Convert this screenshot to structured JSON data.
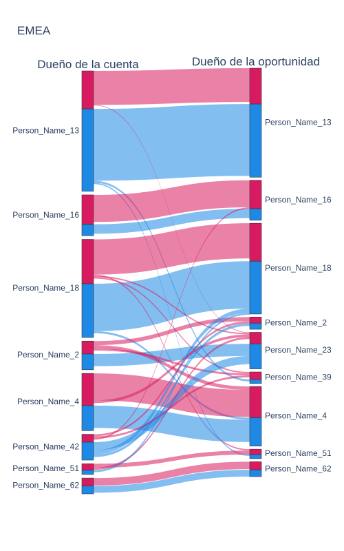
{
  "chart_data": {
    "type": "sankey",
    "title": "EMEA",
    "left_header": "Dueño de la cuenta",
    "right_header": "Dueño de la oportunidad",
    "colors": {
      "pink": "#d81b60",
      "blue": "#1e88e5"
    },
    "left_nodes": [
      {
        "name": "Person_Name_13",
        "pink": 53,
        "blue": 115
      },
      {
        "name": "Person_Name_16",
        "pink": 41,
        "blue": 16
      },
      {
        "name": "Person_Name_18",
        "pink": 62,
        "blue": 75
      },
      {
        "name": "Person_Name_2",
        "pink": 18,
        "blue": 22
      },
      {
        "name": "Person_Name_4",
        "pink": 45,
        "blue": 35
      },
      {
        "name": "Person_Name_42",
        "pink": 11,
        "blue": 25
      },
      {
        "name": "Person_Name_51",
        "pink": 9,
        "blue": 6
      },
      {
        "name": "Person_Name_62",
        "pink": 11,
        "blue": 11
      }
    ],
    "right_nodes": [
      {
        "name": "Person_Name_13",
        "pink": 53,
        "blue": 108
      },
      {
        "name": "Person_Name_16",
        "pink": 42,
        "blue": 17
      },
      {
        "name": "Person_Name_18",
        "pink": 56,
        "blue": 78
      },
      {
        "name": "Person_Name_2",
        "pink": 9,
        "blue": 9
      },
      {
        "name": "Person_Name_23",
        "pink": 17,
        "blue": 37
      },
      {
        "name": "Person_Name_39",
        "pink": 11,
        "blue": 6
      },
      {
        "name": "Person_Name_4",
        "pink": 46,
        "blue": 42
      },
      {
        "name": "Person_Name_51",
        "pink": 8,
        "blue": 6
      },
      {
        "name": "Person_Name_62",
        "pink": 12,
        "blue": 10
      }
    ],
    "flows": [
      {
        "from": "Person_Name_13",
        "to": "Person_Name_13",
        "color": "pink",
        "value": 50
      },
      {
        "from": "Person_Name_13",
        "to": "Person_Name_13",
        "color": "blue",
        "value": 106
      },
      {
        "from": "Person_Name_13",
        "to": "Person_Name_39",
        "color": "blue",
        "value": 3
      },
      {
        "from": "Person_Name_13",
        "to": "Person_Name_51",
        "color": "blue",
        "value": 2
      },
      {
        "from": "Person_Name_13",
        "to": "Person_Name_23",
        "color": "pink",
        "value": 1
      },
      {
        "from": "Person_Name_16",
        "to": "Person_Name_16",
        "color": "pink",
        "value": 40
      },
      {
        "from": "Person_Name_16",
        "to": "Person_Name_16",
        "color": "blue",
        "value": 14
      },
      {
        "from": "Person_Name_18",
        "to": "Person_Name_18",
        "color": "pink",
        "value": 52
      },
      {
        "from": "Person_Name_18",
        "to": "Person_Name_18",
        "color": "blue",
        "value": 70
      },
      {
        "from": "Person_Name_18",
        "to": "Person_Name_4",
        "color": "blue",
        "value": 3
      },
      {
        "from": "Person_Name_18",
        "to": "Person_Name_51",
        "color": "pink",
        "value": 2
      },
      {
        "from": "Person_Name_18",
        "to": "Person_Name_23",
        "color": "pink",
        "value": 2
      },
      {
        "from": "Person_Name_18",
        "to": "Person_Name_39",
        "color": "pink",
        "value": 2
      },
      {
        "from": "Person_Name_2",
        "to": "Person_Name_2",
        "color": "pink",
        "value": 6
      },
      {
        "from": "Person_Name_2",
        "to": "Person_Name_23",
        "color": "blue",
        "value": 18
      },
      {
        "from": "Person_Name_2",
        "to": "Person_Name_4",
        "color": "pink",
        "value": 5
      },
      {
        "from": "Person_Name_2",
        "to": "Person_Name_39",
        "color": "pink",
        "value": 3
      },
      {
        "from": "Person_Name_4",
        "to": "Person_Name_4",
        "color": "pink",
        "value": 40
      },
      {
        "from": "Person_Name_4",
        "to": "Person_Name_4",
        "color": "blue",
        "value": 33
      },
      {
        "from": "Person_Name_4",
        "to": "Person_Name_23",
        "color": "pink",
        "value": 4
      },
      {
        "from": "Person_Name_42",
        "to": "Person_Name_23",
        "color": "blue",
        "value": 12
      },
      {
        "from": "Person_Name_42",
        "to": "Person_Name_18",
        "color": "blue",
        "value": 6
      },
      {
        "from": "Person_Name_42",
        "to": "Person_Name_2",
        "color": "blue",
        "value": 4
      },
      {
        "from": "Person_Name_42",
        "to": "Person_Name_2",
        "color": "pink",
        "value": 3
      },
      {
        "from": "Person_Name_42",
        "to": "Person_Name_39",
        "color": "pink",
        "value": 3
      },
      {
        "from": "Person_Name_42",
        "to": "Person_Name_16",
        "color": "pink",
        "value": 2
      },
      {
        "from": "Person_Name_51",
        "to": "Person_Name_51",
        "color": "pink",
        "value": 6
      },
      {
        "from": "Person_Name_51",
        "to": "Person_Name_23",
        "color": "pink",
        "value": 3
      },
      {
        "from": "Person_Name_51",
        "to": "Person_Name_18",
        "color": "blue",
        "value": 3
      },
      {
        "from": "Person_Name_62",
        "to": "Person_Name_62",
        "color": "pink",
        "value": 11
      },
      {
        "from": "Person_Name_62",
        "to": "Person_Name_62",
        "color": "blue",
        "value": 10
      }
    ]
  }
}
